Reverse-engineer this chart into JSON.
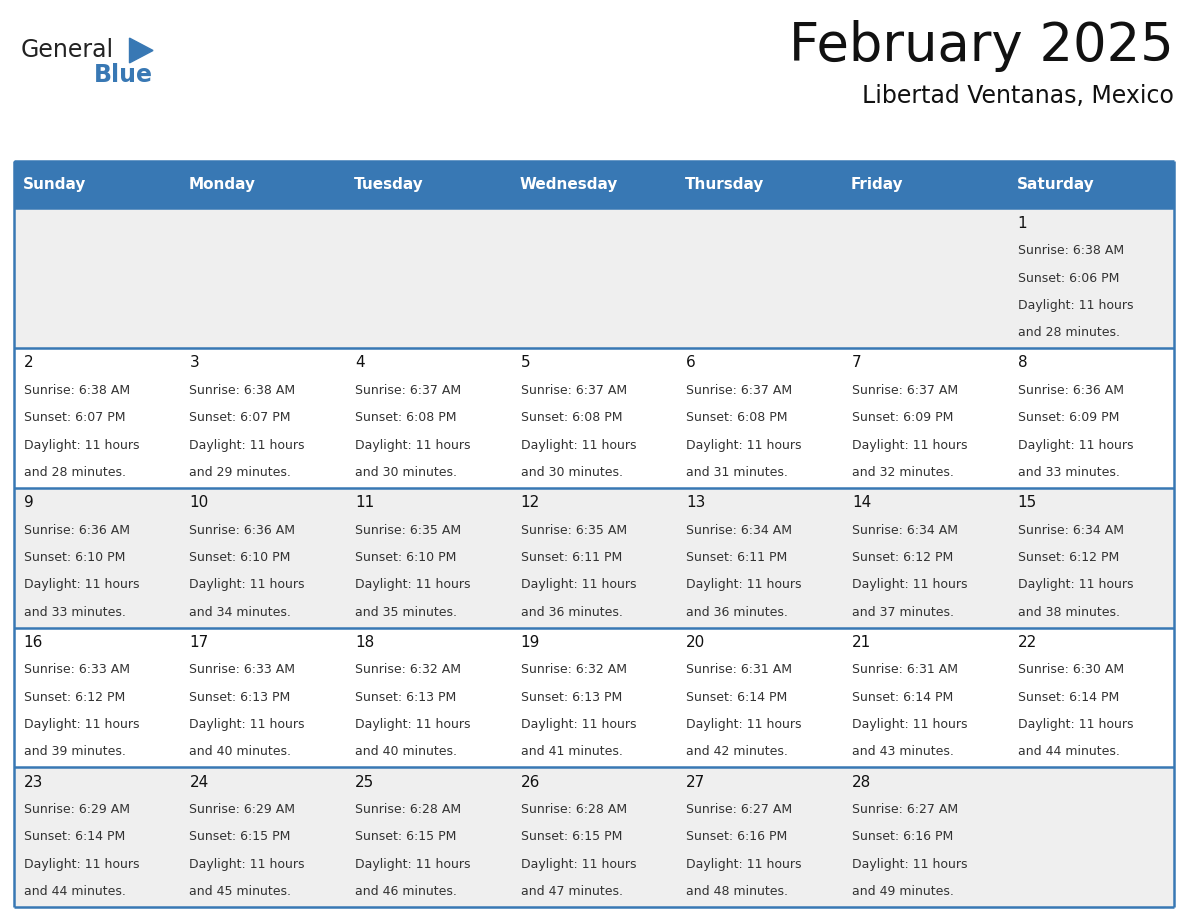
{
  "title": "February 2025",
  "subtitle": "Libertad Ventanas, Mexico",
  "header_bg_color": "#3878B4",
  "header_text_color": "#FFFFFF",
  "cell_bg_color_odd": "#EFEFEF",
  "cell_bg_color_even": "#FFFFFF",
  "border_color": "#3878B4",
  "day_names": [
    "Sunday",
    "Monday",
    "Tuesday",
    "Wednesday",
    "Thursday",
    "Friday",
    "Saturday"
  ],
  "days_data": [
    {
      "day": 1,
      "col": 6,
      "row": 0,
      "sunrise": "6:38 AM",
      "sunset": "6:06 PM",
      "daylight_line1": "Daylight: 11 hours",
      "daylight_line2": "and 28 minutes."
    },
    {
      "day": 2,
      "col": 0,
      "row": 1,
      "sunrise": "6:38 AM",
      "sunset": "6:07 PM",
      "daylight_line1": "Daylight: 11 hours",
      "daylight_line2": "and 28 minutes."
    },
    {
      "day": 3,
      "col": 1,
      "row": 1,
      "sunrise": "6:38 AM",
      "sunset": "6:07 PM",
      "daylight_line1": "Daylight: 11 hours",
      "daylight_line2": "and 29 minutes."
    },
    {
      "day": 4,
      "col": 2,
      "row": 1,
      "sunrise": "6:37 AM",
      "sunset": "6:08 PM",
      "daylight_line1": "Daylight: 11 hours",
      "daylight_line2": "and 30 minutes."
    },
    {
      "day": 5,
      "col": 3,
      "row": 1,
      "sunrise": "6:37 AM",
      "sunset": "6:08 PM",
      "daylight_line1": "Daylight: 11 hours",
      "daylight_line2": "and 30 minutes."
    },
    {
      "day": 6,
      "col": 4,
      "row": 1,
      "sunrise": "6:37 AM",
      "sunset": "6:08 PM",
      "daylight_line1": "Daylight: 11 hours",
      "daylight_line2": "and 31 minutes."
    },
    {
      "day": 7,
      "col": 5,
      "row": 1,
      "sunrise": "6:37 AM",
      "sunset": "6:09 PM",
      "daylight_line1": "Daylight: 11 hours",
      "daylight_line2": "and 32 minutes."
    },
    {
      "day": 8,
      "col": 6,
      "row": 1,
      "sunrise": "6:36 AM",
      "sunset": "6:09 PM",
      "daylight_line1": "Daylight: 11 hours",
      "daylight_line2": "and 33 minutes."
    },
    {
      "day": 9,
      "col": 0,
      "row": 2,
      "sunrise": "6:36 AM",
      "sunset": "6:10 PM",
      "daylight_line1": "Daylight: 11 hours",
      "daylight_line2": "and 33 minutes."
    },
    {
      "day": 10,
      "col": 1,
      "row": 2,
      "sunrise": "6:36 AM",
      "sunset": "6:10 PM",
      "daylight_line1": "Daylight: 11 hours",
      "daylight_line2": "and 34 minutes."
    },
    {
      "day": 11,
      "col": 2,
      "row": 2,
      "sunrise": "6:35 AM",
      "sunset": "6:10 PM",
      "daylight_line1": "Daylight: 11 hours",
      "daylight_line2": "and 35 minutes."
    },
    {
      "day": 12,
      "col": 3,
      "row": 2,
      "sunrise": "6:35 AM",
      "sunset": "6:11 PM",
      "daylight_line1": "Daylight: 11 hours",
      "daylight_line2": "and 36 minutes."
    },
    {
      "day": 13,
      "col": 4,
      "row": 2,
      "sunrise": "6:34 AM",
      "sunset": "6:11 PM",
      "daylight_line1": "Daylight: 11 hours",
      "daylight_line2": "and 36 minutes."
    },
    {
      "day": 14,
      "col": 5,
      "row": 2,
      "sunrise": "6:34 AM",
      "sunset": "6:12 PM",
      "daylight_line1": "Daylight: 11 hours",
      "daylight_line2": "and 37 minutes."
    },
    {
      "day": 15,
      "col": 6,
      "row": 2,
      "sunrise": "6:34 AM",
      "sunset": "6:12 PM",
      "daylight_line1": "Daylight: 11 hours",
      "daylight_line2": "and 38 minutes."
    },
    {
      "day": 16,
      "col": 0,
      "row": 3,
      "sunrise": "6:33 AM",
      "sunset": "6:12 PM",
      "daylight_line1": "Daylight: 11 hours",
      "daylight_line2": "and 39 minutes."
    },
    {
      "day": 17,
      "col": 1,
      "row": 3,
      "sunrise": "6:33 AM",
      "sunset": "6:13 PM",
      "daylight_line1": "Daylight: 11 hours",
      "daylight_line2": "and 40 minutes."
    },
    {
      "day": 18,
      "col": 2,
      "row": 3,
      "sunrise": "6:32 AM",
      "sunset": "6:13 PM",
      "daylight_line1": "Daylight: 11 hours",
      "daylight_line2": "and 40 minutes."
    },
    {
      "day": 19,
      "col": 3,
      "row": 3,
      "sunrise": "6:32 AM",
      "sunset": "6:13 PM",
      "daylight_line1": "Daylight: 11 hours",
      "daylight_line2": "and 41 minutes."
    },
    {
      "day": 20,
      "col": 4,
      "row": 3,
      "sunrise": "6:31 AM",
      "sunset": "6:14 PM",
      "daylight_line1": "Daylight: 11 hours",
      "daylight_line2": "and 42 minutes."
    },
    {
      "day": 21,
      "col": 5,
      "row": 3,
      "sunrise": "6:31 AM",
      "sunset": "6:14 PM",
      "daylight_line1": "Daylight: 11 hours",
      "daylight_line2": "and 43 minutes."
    },
    {
      "day": 22,
      "col": 6,
      "row": 3,
      "sunrise": "6:30 AM",
      "sunset": "6:14 PM",
      "daylight_line1": "Daylight: 11 hours",
      "daylight_line2": "and 44 minutes."
    },
    {
      "day": 23,
      "col": 0,
      "row": 4,
      "sunrise": "6:29 AM",
      "sunset": "6:14 PM",
      "daylight_line1": "Daylight: 11 hours",
      "daylight_line2": "and 44 minutes."
    },
    {
      "day": 24,
      "col": 1,
      "row": 4,
      "sunrise": "6:29 AM",
      "sunset": "6:15 PM",
      "daylight_line1": "Daylight: 11 hours",
      "daylight_line2": "and 45 minutes."
    },
    {
      "day": 25,
      "col": 2,
      "row": 4,
      "sunrise": "6:28 AM",
      "sunset": "6:15 PM",
      "daylight_line1": "Daylight: 11 hours",
      "daylight_line2": "and 46 minutes."
    },
    {
      "day": 26,
      "col": 3,
      "row": 4,
      "sunrise": "6:28 AM",
      "sunset": "6:15 PM",
      "daylight_line1": "Daylight: 11 hours",
      "daylight_line2": "and 47 minutes."
    },
    {
      "day": 27,
      "col": 4,
      "row": 4,
      "sunrise": "6:27 AM",
      "sunset": "6:16 PM",
      "daylight_line1": "Daylight: 11 hours",
      "daylight_line2": "and 48 minutes."
    },
    {
      "day": 28,
      "col": 5,
      "row": 4,
      "sunrise": "6:27 AM",
      "sunset": "6:16 PM",
      "daylight_line1": "Daylight: 11 hours",
      "daylight_line2": "and 49 minutes."
    }
  ],
  "num_rows": 5,
  "logo_text_general": "General",
  "logo_text_blue": "Blue",
  "logo_triangle_color": "#3878B4",
  "logo_general_color": "#222222",
  "logo_blue_color": "#3878B4",
  "title_fontsize": 38,
  "subtitle_fontsize": 17,
  "header_fontsize": 11,
  "day_num_fontsize": 11,
  "info_fontsize": 9,
  "logo_fontsize": 17
}
